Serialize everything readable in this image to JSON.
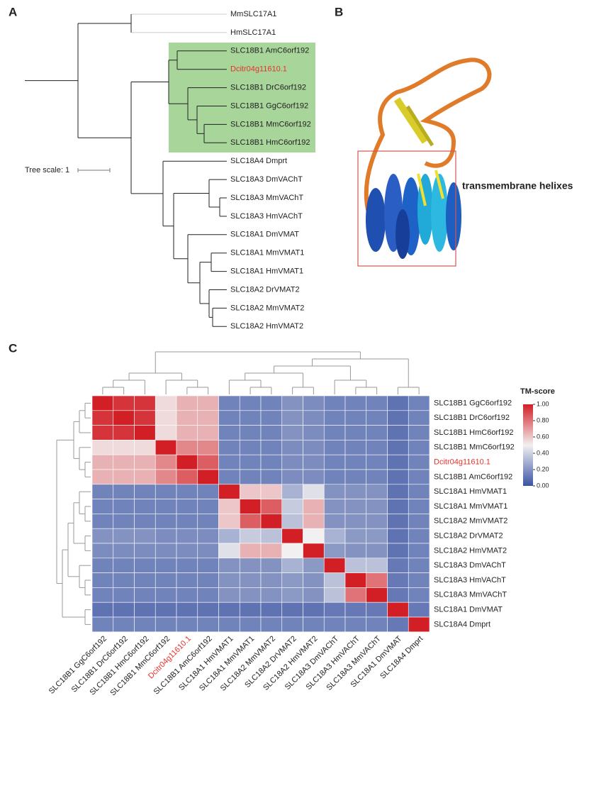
{
  "panel_labels": [
    "A",
    "B",
    "C"
  ],
  "tree": {
    "scale_label": "Tree scale: 1",
    "leaves": [
      {
        "label": "MmSLC17A1"
      },
      {
        "label": "HmSLC17A1"
      },
      {
        "label": "SLC18B1 AmC6orf192"
      },
      {
        "label": "Dcitr04g11610.1",
        "color": "#e8312a"
      },
      {
        "label": "SLC18B1 DrC6orf192"
      },
      {
        "label": "SLC18B1 GgC6orf192"
      },
      {
        "label": "SLC18B1 MmC6orf192"
      },
      {
        "label": "SLC18B1 HmC6orf192"
      },
      {
        "label": "SLC18A4 Dmprt"
      },
      {
        "label": "SLC18A3 DmVAChT"
      },
      {
        "label": "SLC18A3 MmVAChT"
      },
      {
        "label": "SLC18A3 HmVAChT"
      },
      {
        "label": "SLC18A1 DmVMAT"
      },
      {
        "label": "SLC18A1 MmVMAT1"
      },
      {
        "label": "SLC18A1 HmVMAT1"
      },
      {
        "label": "SLC18A2 DrVMAT2"
      },
      {
        "label": "SLC18A2 MmVMAT2"
      },
      {
        "label": "SLC18A2 HmVMAT2"
      }
    ]
  },
  "structure": {
    "annotation": "transmembrane helixes"
  },
  "chart_data": {
    "type": "heatmap",
    "colorbar_title": "TM-score",
    "colormap": [
      "#3a54a4",
      "#f2f0f0",
      "#d21f26"
    ],
    "zlim": [
      0,
      1
    ],
    "zticks": [
      {
        "value": 0,
        "label": "0.00"
      },
      {
        "value": 0.2,
        "label": "0.20"
      },
      {
        "value": 0.4,
        "label": "0.40"
      },
      {
        "value": 0.6,
        "label": "0.60"
      },
      {
        "value": 0.8,
        "label": "0.80"
      },
      {
        "value": 1,
        "label": "1.00"
      }
    ],
    "rows": [
      {
        "label": "SLC18B1 GgC6orf192"
      },
      {
        "label": "SLC18B1 DrC6orf192"
      },
      {
        "label": "SLC18B1 HmC6orf192"
      },
      {
        "label": "SLC18B1 MmC6orf192"
      },
      {
        "label": "Dcitr04g11610.1",
        "color": "#e8312a"
      },
      {
        "label": "SLC18B1 AmC6orf192"
      },
      {
        "label": "SLC18A1 HmVMAT1"
      },
      {
        "label": "SLC18A1 MmVMAT1"
      },
      {
        "label": "SLC18A2 MmVMAT2"
      },
      {
        "label": "SLC18A2 DrVMAT2"
      },
      {
        "label": "SLC18A2 HmVMAT2"
      },
      {
        "label": "SLC18A3 DmVAChT"
      },
      {
        "label": "SLC18A3 HmVAChT"
      },
      {
        "label": "SLC18A3 MmVAChT"
      },
      {
        "label": "SLC18A1 DmVMAT"
      },
      {
        "label": "SLC18A4 Dmprt"
      }
    ],
    "columns": [
      {
        "label": "SLC18B1 GgC6orf192"
      },
      {
        "label": "SLC18B1 DrC6orf192"
      },
      {
        "label": "SLC18B1 HmC6orf192"
      },
      {
        "label": "SLC18B1 MmC6orf192"
      },
      {
        "label": "Dcitr04g11610.1",
        "color": "#e8312a"
      },
      {
        "label": "SLC18B1 AmC6orf192"
      },
      {
        "label": "SLC18A1 HmVMAT1"
      },
      {
        "label": "SLC18A1 MmVMAT1"
      },
      {
        "label": "SLC18A2 MmVMAT2"
      },
      {
        "label": "SLC18A2 DrVMAT2"
      },
      {
        "label": "SLC18A2 HmVMAT2"
      },
      {
        "label": "SLC18A3 DmVAChT"
      },
      {
        "label": "SLC18A3 HmVAChT"
      },
      {
        "label": "SLC18A3 MmVAChT"
      },
      {
        "label": "SLC18A1 DmVMAT"
      },
      {
        "label": "SLC18A4 Dmprt"
      }
    ],
    "values": [
      [
        1,
        0.95,
        0.95,
        0.55,
        0.65,
        0.65,
        0.15,
        0.15,
        0.15,
        0.2,
        0.18,
        0.15,
        0.15,
        0.15,
        0.1,
        0.15
      ],
      [
        0.95,
        1,
        0.95,
        0.55,
        0.65,
        0.65,
        0.15,
        0.15,
        0.15,
        0.2,
        0.18,
        0.15,
        0.15,
        0.15,
        0.1,
        0.15
      ],
      [
        0.95,
        0.95,
        1,
        0.55,
        0.65,
        0.65,
        0.15,
        0.15,
        0.15,
        0.2,
        0.18,
        0.15,
        0.15,
        0.15,
        0.1,
        0.15
      ],
      [
        0.55,
        0.55,
        0.55,
        1,
        0.75,
        0.75,
        0.15,
        0.15,
        0.15,
        0.18,
        0.18,
        0.15,
        0.15,
        0.15,
        0.1,
        0.15
      ],
      [
        0.65,
        0.65,
        0.65,
        0.75,
        1,
        0.85,
        0.15,
        0.15,
        0.15,
        0.18,
        0.18,
        0.15,
        0.15,
        0.15,
        0.1,
        0.15
      ],
      [
        0.65,
        0.65,
        0.65,
        0.75,
        0.85,
        1,
        0.15,
        0.15,
        0.15,
        0.18,
        0.18,
        0.15,
        0.15,
        0.15,
        0.1,
        0.15
      ],
      [
        0.15,
        0.15,
        0.15,
        0.15,
        0.15,
        0.15,
        1,
        0.6,
        0.6,
        0.3,
        0.45,
        0.2,
        0.2,
        0.2,
        0.1,
        0.15
      ],
      [
        0.15,
        0.15,
        0.15,
        0.15,
        0.15,
        0.15,
        0.6,
        1,
        0.85,
        0.38,
        0.65,
        0.2,
        0.2,
        0.2,
        0.1,
        0.15
      ],
      [
        0.15,
        0.15,
        0.15,
        0.15,
        0.15,
        0.15,
        0.6,
        0.85,
        1,
        0.35,
        0.65,
        0.2,
        0.2,
        0.2,
        0.1,
        0.15
      ],
      [
        0.2,
        0.2,
        0.2,
        0.18,
        0.18,
        0.18,
        0.3,
        0.38,
        0.35,
        1,
        0.5,
        0.3,
        0.22,
        0.22,
        0.1,
        0.15
      ],
      [
        0.18,
        0.18,
        0.18,
        0.18,
        0.18,
        0.18,
        0.45,
        0.65,
        0.65,
        0.5,
        1,
        0.22,
        0.2,
        0.2,
        0.1,
        0.15
      ],
      [
        0.15,
        0.15,
        0.15,
        0.15,
        0.15,
        0.15,
        0.2,
        0.2,
        0.2,
        0.3,
        0.22,
        1,
        0.35,
        0.35,
        0.12,
        0.15
      ],
      [
        0.15,
        0.15,
        0.15,
        0.15,
        0.15,
        0.15,
        0.2,
        0.2,
        0.2,
        0.22,
        0.2,
        0.35,
        1,
        0.8,
        0.12,
        0.15
      ],
      [
        0.15,
        0.15,
        0.15,
        0.15,
        0.15,
        0.15,
        0.2,
        0.2,
        0.2,
        0.22,
        0.2,
        0.35,
        0.8,
        1,
        0.12,
        0.15
      ],
      [
        0.1,
        0.1,
        0.1,
        0.1,
        0.1,
        0.1,
        0.1,
        0.1,
        0.1,
        0.1,
        0.1,
        0.12,
        0.12,
        0.12,
        1,
        0.12
      ],
      [
        0.15,
        0.15,
        0.15,
        0.15,
        0.15,
        0.15,
        0.15,
        0.15,
        0.15,
        0.15,
        0.15,
        0.15,
        0.15,
        0.15,
        0.12,
        1
      ]
    ]
  }
}
